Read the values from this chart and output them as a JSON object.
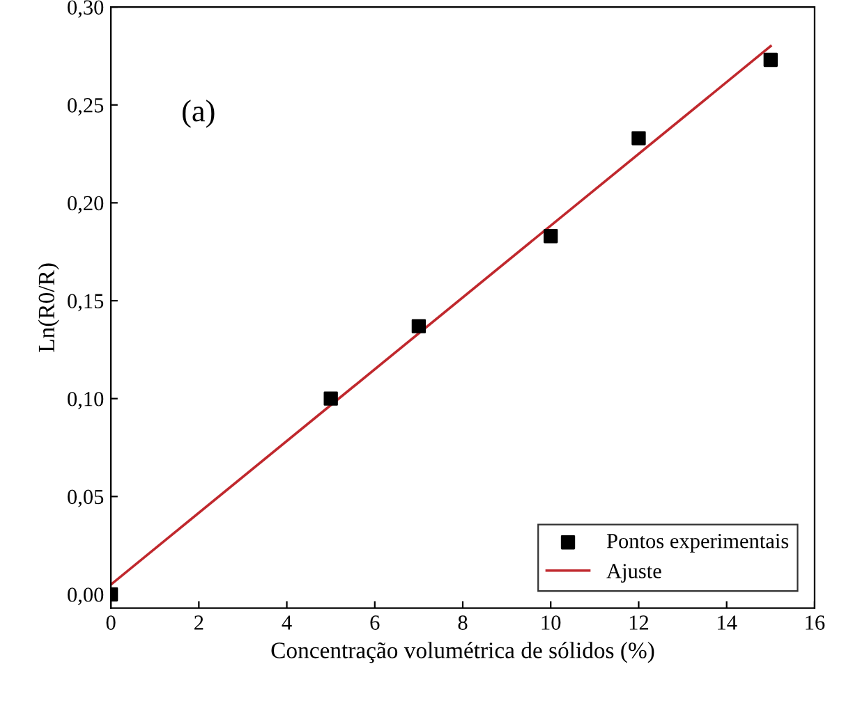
{
  "chart_data": {
    "type": "scatter",
    "xlabel": "Concentração volumétrica de sólidos (%)",
    "ylabel": "Ln(R0/R)",
    "annotations": [
      "(a)"
    ],
    "series": [
      {
        "name": "Pontos experimentais",
        "color": "#000000",
        "marker": "square",
        "x": [
          0,
          5,
          7,
          10,
          12,
          15
        ],
        "values": [
          0.0,
          0.1,
          0.137,
          0.183,
          0.233,
          0.273
        ]
      },
      {
        "name": "Ajuste",
        "type": "line",
        "color": "#c0282d",
        "marker": "none",
        "line_style": "solid",
        "x": [
          0,
          15
        ],
        "values": [
          0.005,
          0.28
        ]
      }
    ],
    "xlim": [
      0,
      16
    ],
    "ylim": [
      -0.007,
      0.3
    ],
    "xticks": [
      0,
      2,
      4,
      6,
      8,
      10,
      12,
      14,
      16
    ],
    "yticks": [
      {
        "value": 0,
        "label": "0,00"
      },
      {
        "value": 0.05,
        "label": "0,05"
      },
      {
        "value": 0.1,
        "label": "0,10"
      },
      {
        "value": 0.15,
        "label": "0,15"
      },
      {
        "value": 0.2,
        "label": "0,20"
      },
      {
        "value": 0.25,
        "label": "0,25"
      },
      {
        "value": 0.3,
        "label": "0,30"
      }
    ],
    "legend": "bottom right",
    "grid": false
  }
}
